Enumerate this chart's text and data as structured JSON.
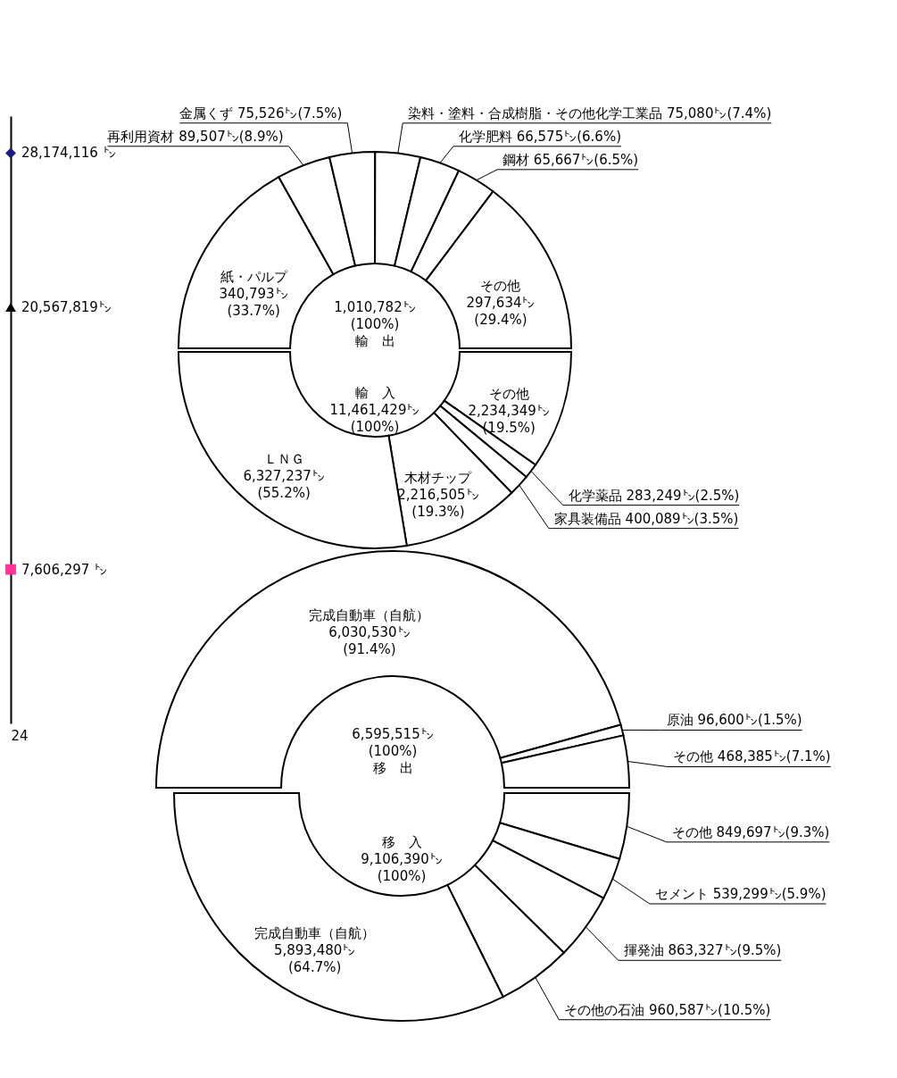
{
  "chart_data": [
    {
      "type": "other",
      "categories": [
        "24"
      ],
      "series": [
        {
          "color": "#1a1a8c",
          "marker": "diamond",
          "values": [
            28174116
          ],
          "value_labels": [
            "28,174,116 ㌧"
          ]
        },
        {
          "color": "#000000",
          "marker": "triangle",
          "values": [
            20567819
          ],
          "value_labels": [
            "20,567,819㌧"
          ]
        },
        {
          "color": "#ff3399",
          "marker": "square",
          "values": [
            7606297
          ],
          "value_labels": [
            "7,606,297 ㌧"
          ]
        }
      ]
    },
    {
      "type": "donut",
      "annotations": [
        "1,010,782㌧",
        "(100%)",
        "輸　出"
      ],
      "categories": [
        "紙・パルプ",
        "再利用資材",
        "金属くず",
        "染料・塗料・合成樹脂・その他化学工業品",
        "化学肥料",
        "鋼材",
        "その他"
      ],
      "values": [
        340793,
        89507,
        75526,
        75080,
        66575,
        65667,
        297634
      ],
      "value_labels": [
        "340,793㌧(33.7%)",
        "89,507㌧(8.9%)",
        "75,526㌧(7.5%)",
        "75,080㌧(7.4%)",
        "66,575㌧(6.6%)",
        "65,667㌧(6.5%)",
        "297,634㌧(29.4%)"
      ],
      "colors": [
        "#ffffff",
        "#ffffff",
        "#ffffff",
        "#ffffff",
        "#ffffff",
        "#ffffff",
        "#ffffff"
      ]
    },
    {
      "type": "donut",
      "annotations": [
        "輸　入",
        "11,461,429㌧",
        "(100%)"
      ],
      "categories": [
        "その他",
        "化学薬品",
        "家具装備品",
        "木材チップ",
        "ＬＮＧ"
      ],
      "values": [
        2234349,
        283249,
        400089,
        2216505,
        6327237
      ],
      "value_labels": [
        "2,234,349㌧(19.5%)",
        "283,249㌧(2.5%)",
        "400,089㌧(3.5%)",
        "2,216,505㌧(19.3%)",
        "6,327,237㌧(55.2%)"
      ],
      "colors": [
        "#ffffff",
        "#ffffff",
        "#ffffff",
        "#ffffff",
        "#ffffff"
      ]
    },
    {
      "type": "donut",
      "annotations": [
        "6,595,515㌧",
        "(100%)",
        "移　出"
      ],
      "categories": [
        "完成自動車（自航）",
        "原油",
        "その他"
      ],
      "values": [
        6030530,
        96600,
        468385
      ],
      "value_labels": [
        "6,030,530㌧(91.4%)",
        "96,600㌧(1.5%)",
        "468,385㌧(7.1%)"
      ],
      "colors": [
        "#ffffff",
        "#ffffff",
        "#ffffff"
      ]
    },
    {
      "type": "donut",
      "annotations": [
        "移　入",
        "9,106,390㌧",
        "(100%)"
      ],
      "categories": [
        "その他",
        "セメント",
        "揮発油",
        "その他の石油",
        "完成自動車（自航）"
      ],
      "values": [
        849697,
        539299,
        863327,
        960587,
        5893480
      ],
      "value_labels": [
        "849,697㌧(9.3%)",
        "539,299㌧(5.9%)",
        "863,327㌧(9.5%)",
        "960,587㌧(10.5%)",
        "5,893,480㌧(64.7%)"
      ],
      "colors": [
        "#ffffff",
        "#ffffff",
        "#ffffff",
        "#ffffff",
        "#ffffff"
      ]
    }
  ]
}
